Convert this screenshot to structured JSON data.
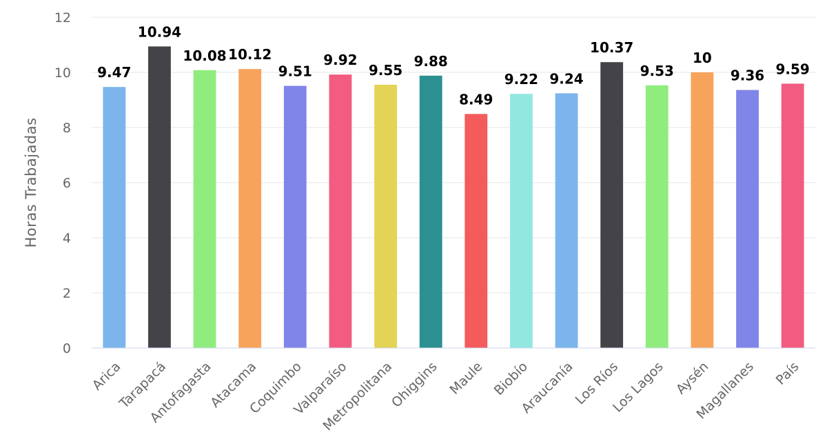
{
  "chart_data": {
    "type": "bar",
    "ylabel": "Horas Trabajadas",
    "ylim": [
      0,
      12
    ],
    "yticks": [
      0,
      2,
      4,
      6,
      8,
      10,
      12
    ],
    "grid": true,
    "legend": "none",
    "categories": [
      "Arica",
      "Tarapacá",
      "Antofagasta",
      "Atacama",
      "Coquimbo",
      "Valparaíso",
      "Metropolitana",
      "Ohiggins",
      "Maule",
      "Biobío",
      "Araucanía",
      "Los Ríos",
      "Los Lagos",
      "Aysén",
      "Magallanes",
      "País"
    ],
    "values": [
      9.47,
      10.94,
      10.08,
      10.12,
      9.51,
      9.92,
      9.55,
      9.88,
      8.49,
      9.22,
      9.24,
      10.37,
      9.53,
      10,
      9.36,
      9.59
    ],
    "colors": [
      "#7cb5ec",
      "#434348",
      "#90ed7d",
      "#f7a35c",
      "#8085e9",
      "#f15c80",
      "#e4d354",
      "#2b908f",
      "#f45b5b",
      "#91e8e1",
      "#7cb5ec",
      "#434348",
      "#90ed7d",
      "#f7a35c",
      "#8085e9",
      "#f15c80"
    ]
  }
}
